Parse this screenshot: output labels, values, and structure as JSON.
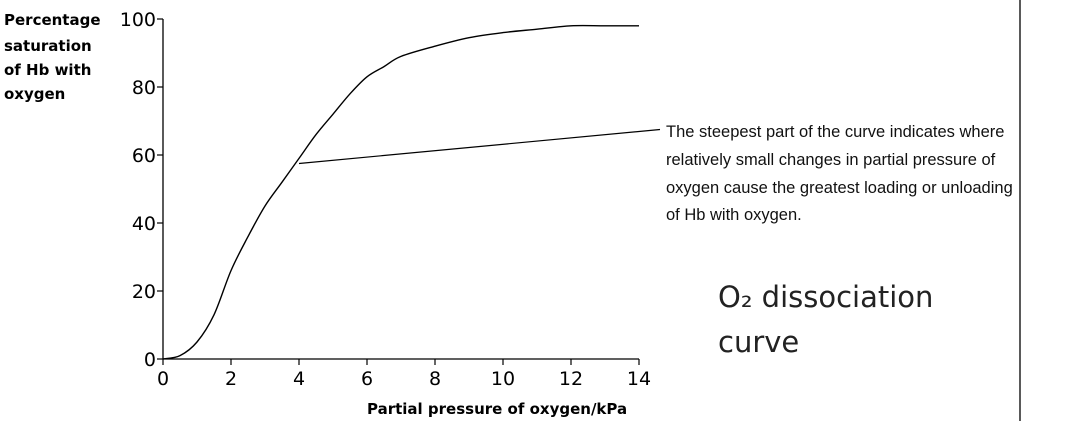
{
  "chart_data": {
    "type": "line",
    "ylabel_lines": [
      "Percentage",
      "saturation",
      "of Hb with",
      "oxygen"
    ],
    "xlabel": "Partial pressure of oxygen/kPa",
    "xlim": [
      0,
      14
    ],
    "ylim": [
      0,
      100
    ],
    "x_ticks": [
      0,
      2,
      4,
      6,
      8,
      10,
      12,
      14
    ],
    "y_ticks": [
      0,
      20,
      40,
      60,
      80,
      100
    ],
    "grid": false,
    "legend": "none",
    "series": [
      {
        "x": [
          0,
          0.5,
          1,
          1.5,
          2,
          2.5,
          3,
          3.5,
          4,
          4.5,
          5,
          5.5,
          6,
          6.5,
          7,
          8,
          9,
          10,
          11,
          12,
          13,
          14
        ],
        "y": [
          0,
          1,
          5,
          13,
          26,
          36,
          45,
          52,
          59,
          66,
          72,
          78,
          83,
          86,
          89,
          92,
          94.5,
          96,
          97,
          98,
          98,
          98
        ]
      }
    ],
    "annotation": {
      "text_lines": [
        "The steepest part of the curve indicates where",
        "relatively small changes in partial pressure of",
        "oxygen cause the greatest loading or unloading",
        "of Hb with oxygen."
      ],
      "point": {
        "x": 4,
        "y": 57.5
      },
      "line_end_y": 67.5
    },
    "subtitle_lines": [
      "O₂ dissociation",
      "curve"
    ]
  }
}
